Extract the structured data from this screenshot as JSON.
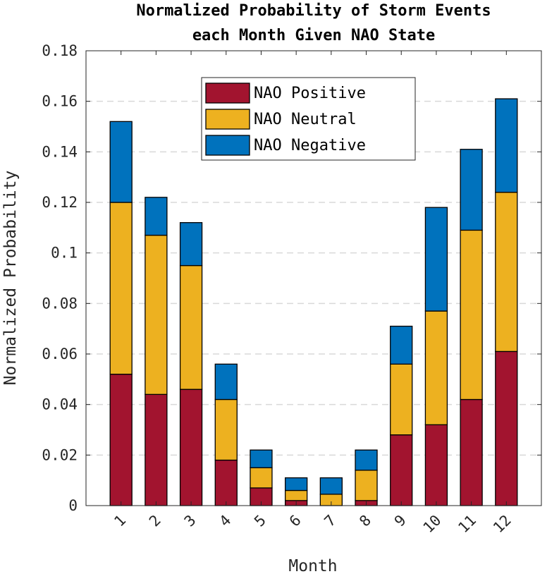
{
  "chart_data": {
    "type": "bar",
    "stacked": true,
    "title": "Normalized Probability of Storm Events each Month Given NAO State",
    "title_lines": [
      "Normalized Probability of Storm Events",
      "each Month Given NAO State"
    ],
    "xlabel": "Month",
    "ylabel": "Normalized Probability",
    "categories": [
      "1",
      "2",
      "3",
      "4",
      "5",
      "6",
      "7",
      "8",
      "9",
      "10",
      "11",
      "12"
    ],
    "ylim": [
      0,
      0.18
    ],
    "yticks": [
      0,
      0.02,
      0.04,
      0.06,
      0.08,
      0.1,
      0.12,
      0.14,
      0.16,
      0.18
    ],
    "ytick_labels": [
      "0",
      "0.02",
      "0.04",
      "0.06",
      "0.08",
      "0.1",
      "0.12",
      "0.14",
      "0.16",
      "0.18"
    ],
    "grid": "horizontal-dashed",
    "legend_position": "top-center",
    "series": [
      {
        "name": "NAO Positive",
        "color": "#A2142F",
        "values": [
          0.052,
          0.044,
          0.046,
          0.018,
          0.007,
          0.002,
          0.0,
          0.002,
          0.028,
          0.032,
          0.042,
          0.061
        ]
      },
      {
        "name": "NAO Neutral",
        "color": "#EDB120",
        "values": [
          0.068,
          0.063,
          0.049,
          0.024,
          0.008,
          0.004,
          0.0045,
          0.012,
          0.028,
          0.045,
          0.067,
          0.063
        ]
      },
      {
        "name": "NAO Negative",
        "color": "#0072BD",
        "values": [
          0.032,
          0.015,
          0.017,
          0.014,
          0.007,
          0.005,
          0.0065,
          0.008,
          0.015,
          0.041,
          0.032,
          0.037
        ]
      }
    ]
  }
}
